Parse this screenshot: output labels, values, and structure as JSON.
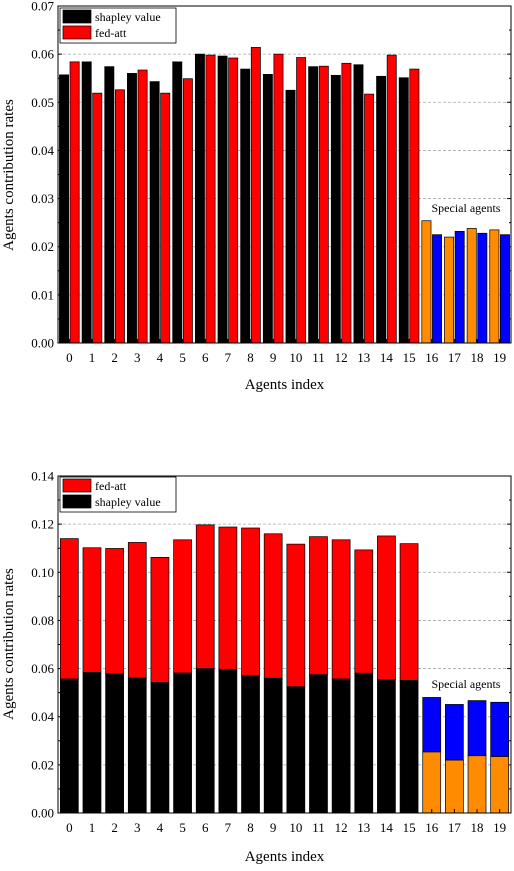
{
  "chart_data": [
    {
      "type": "bar",
      "mode": "grouped",
      "xlabel": "Agents index",
      "ylabel": "Agents contribution rates",
      "categories": [
        "0",
        "1",
        "2",
        "3",
        "4",
        "5",
        "6",
        "7",
        "8",
        "9",
        "10",
        "11",
        "12",
        "13",
        "14",
        "15",
        "16",
        "17",
        "18",
        "19"
      ],
      "ylim": [
        0,
        0.07
      ],
      "yticks": [
        "0.00",
        "0.01",
        "0.02",
        "0.03",
        "0.04",
        "0.05",
        "0.06",
        "0.07"
      ],
      "grid": "horizontal dashed",
      "legend_position": "top-left",
      "annotation": "Special agents",
      "special_agents": [
        16,
        17,
        18,
        19
      ],
      "colors": {
        "shapley": "#000000",
        "fedatt": "#ff0000",
        "special_shapley": "#ff8c00",
        "special_fedatt": "#0000ff"
      },
      "series": [
        {
          "name": "shapley value",
          "values": [
            0.0557,
            0.0584,
            0.0574,
            0.056,
            0.0543,
            0.0584,
            0.06,
            0.0596,
            0.0569,
            0.0558,
            0.0525,
            0.0574,
            0.0556,
            0.0578,
            0.0554,
            0.0551,
            0.0254,
            0.022,
            0.0238,
            0.0235
          ]
        },
        {
          "name": "fed-att",
          "values": [
            0.0584,
            0.0519,
            0.0526,
            0.0567,
            0.0519,
            0.0549,
            0.0598,
            0.0592,
            0.0614,
            0.06,
            0.0593,
            0.0575,
            0.0581,
            0.0517,
            0.0598,
            0.0569,
            0.0225,
            0.0232,
            0.0228,
            0.0225
          ]
        }
      ]
    },
    {
      "type": "bar",
      "mode": "stacked",
      "xlabel": "Agents index",
      "ylabel": "Agents contribution rates",
      "categories": [
        "0",
        "1",
        "2",
        "3",
        "4",
        "5",
        "6",
        "7",
        "8",
        "9",
        "10",
        "11",
        "12",
        "13",
        "14",
        "15",
        "16",
        "17",
        "18",
        "19"
      ],
      "ylim": [
        0,
        0.14
      ],
      "yticks": [
        "0.00",
        "0.02",
        "0.04",
        "0.06",
        "0.08",
        "0.10",
        "0.12",
        "0.14"
      ],
      "grid": "horizontal dashed",
      "legend_position": "top-left",
      "annotation": "Special agents",
      "special_agents": [
        16,
        17,
        18,
        19
      ],
      "colors": {
        "shapley": "#000000",
        "fedatt": "#ff0000",
        "special_shapley": "#ff8c00",
        "special_fedatt": "#0000ff"
      },
      "legend_order": [
        "fed-att",
        "shapley value"
      ],
      "series": [
        {
          "name": "shapley value",
          "values": [
            0.0557,
            0.0584,
            0.0578,
            0.0561,
            0.0542,
            0.0582,
            0.06,
            0.0597,
            0.0571,
            0.056,
            0.0525,
            0.0575,
            0.0557,
            0.0581,
            0.0554,
            0.0551,
            0.0254,
            0.022,
            0.0238,
            0.0235
          ]
        },
        {
          "name": "fed-att",
          "values": [
            0.0583,
            0.0518,
            0.0521,
            0.0563,
            0.052,
            0.0553,
            0.0597,
            0.0591,
            0.0613,
            0.06,
            0.0592,
            0.0573,
            0.0578,
            0.0512,
            0.0597,
            0.0568,
            0.0226,
            0.0231,
            0.0229,
            0.0225
          ]
        }
      ]
    }
  ]
}
